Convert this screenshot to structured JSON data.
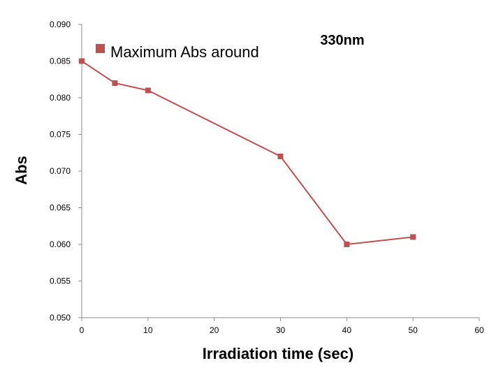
{
  "chart_data": {
    "type": "line",
    "title": "",
    "annotation": "330nm",
    "xlabel": "Irradiation time (sec)",
    "ylabel": "Abs",
    "xlim": [
      0,
      60
    ],
    "ylim": [
      0.05,
      0.09
    ],
    "x_ticks": [
      0,
      10,
      20,
      30,
      40,
      50,
      60
    ],
    "y_ticks": [
      "0.050",
      "0.055",
      "0.060",
      "0.065",
      "0.070",
      "0.075",
      "0.080",
      "0.085",
      "0.090"
    ],
    "grid": false,
    "legend_position": "top-left",
    "series": [
      {
        "name": "Maximum Abs around",
        "color": "#c0504d",
        "x": [
          0,
          5,
          10,
          30,
          40,
          50
        ],
        "y": [
          0.085,
          0.082,
          0.081,
          0.072,
          0.06,
          0.061
        ]
      }
    ]
  }
}
